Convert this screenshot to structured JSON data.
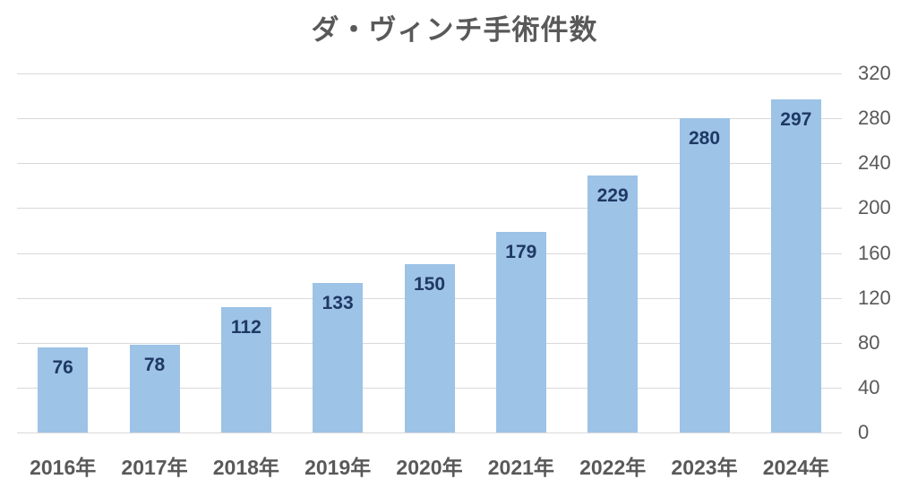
{
  "chart_data": {
    "type": "bar",
    "title": "ダ・ヴィンチ手術件数",
    "categories": [
      "2016年",
      "2017年",
      "2018年",
      "2019年",
      "2020年",
      "2021年",
      "2022年",
      "2023年",
      "2024年"
    ],
    "values": [
      76,
      78,
      112,
      133,
      150,
      179,
      229,
      280,
      297
    ],
    "xlabel": "",
    "ylabel": "",
    "ylim": [
      0,
      320
    ],
    "yticks": [
      0,
      40,
      80,
      120,
      160,
      200,
      240,
      280,
      320
    ],
    "y_axis_side": "right",
    "grid": true,
    "legend": "none",
    "data_labels_position": "inside-end",
    "colors": {
      "bar_fill": "#9DC3E6",
      "data_label": "#1F3864",
      "title": "#595959",
      "axis_label": "#595959",
      "gridline": "#D9D9D9"
    }
  }
}
